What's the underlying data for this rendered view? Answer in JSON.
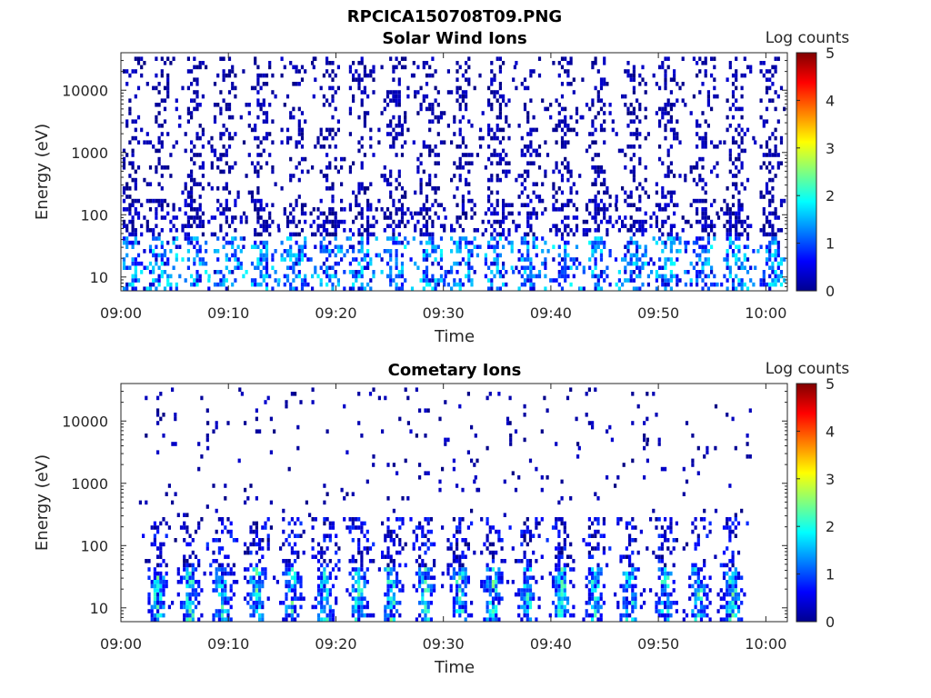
{
  "figure_title": "RPCICA150708T09.PNG",
  "chart_data": [
    {
      "type": "heatmap",
      "title": "Solar Wind Ions",
      "xlabel": "Time",
      "ylabel": "Energy (eV)",
      "xticks": [
        "09:00",
        "09:10",
        "09:20",
        "09:30",
        "09:40",
        "09:50",
        "10:00"
      ],
      "xlim": [
        "09:00",
        "10:02"
      ],
      "yscale": "log",
      "yticks": [
        10,
        100,
        1000,
        10000
      ],
      "ylim": [
        6,
        40000
      ],
      "colorbar": {
        "label": "Log counts",
        "ticks": [
          0,
          1,
          2,
          3,
          4,
          5
        ],
        "range": [
          0,
          5
        ],
        "colormap": "jet"
      },
      "pattern": "Periodic sweeps roughly every 3.2 min; sparse counts (log 0-0.5) spanning 10-20000 eV; brighter patches (log 1-2) at 15-40 eV",
      "sweep_centers_min": [
        0.7,
        3.7,
        6.7,
        9.7,
        12.9,
        16.2,
        19.3,
        22.3,
        25.5,
        28.6,
        31.7,
        34.9,
        38.0,
        41.2,
        44.3,
        47.6,
        50.8,
        54.0,
        57.1,
        60.5
      ],
      "grid": false
    },
    {
      "type": "heatmap",
      "title": "Cometary Ions",
      "xlabel": "Time",
      "ylabel": "Energy (eV)",
      "xticks": [
        "09:00",
        "09:10",
        "09:20",
        "09:30",
        "09:40",
        "09:50",
        "10:00"
      ],
      "xlim": [
        "09:00",
        "10:02"
      ],
      "yscale": "log",
      "yticks": [
        10,
        100,
        1000,
        10000
      ],
      "ylim": [
        6,
        40000
      ],
      "colorbar": {
        "label": "Log counts",
        "ticks": [
          0,
          1,
          2,
          3,
          4,
          5
        ],
        "range": [
          0,
          5
        ],
        "colormap": "jet"
      },
      "pattern": "Counts concentrated at 7-200 eV with peak log counts around 2.5 near 20 eV; sparse isolated counts up to 10000 eV",
      "sweep_centers_min": [
        3.3,
        6.3,
        9.3,
        12.5,
        15.8,
        18.8,
        22.0,
        25.0,
        28.2,
        31.4,
        34.5,
        37.7,
        40.9,
        44.0,
        47.2,
        50.5,
        53.6,
        56.8
      ],
      "grid": false
    }
  ]
}
